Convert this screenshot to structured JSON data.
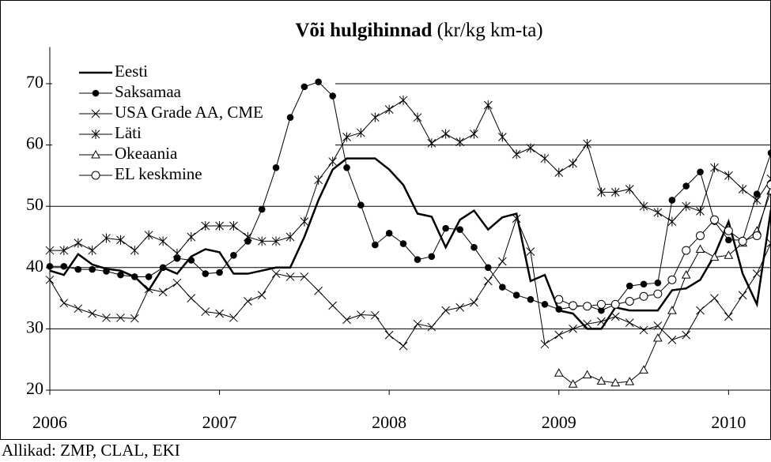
{
  "chart_data": {
    "type": "line",
    "title": "Või hulgihinnad",
    "title_unit": "(kr/kg km-ta)",
    "source": "Allikad: ZMP, CLAL, EKI",
    "x": [
      2006,
      2006.083,
      2006.167,
      2006.25,
      2006.333,
      2006.417,
      2006.5,
      2006.583,
      2006.667,
      2006.75,
      2006.833,
      2006.917,
      2007,
      2007.083,
      2007.167,
      2007.25,
      2007.333,
      2007.417,
      2007.5,
      2007.583,
      2007.667,
      2007.75,
      2007.833,
      2007.917,
      2008,
      2008.083,
      2008.167,
      2008.25,
      2008.333,
      2008.417,
      2008.5,
      2008.583,
      2008.667,
      2008.75,
      2008.833,
      2008.917,
      2009,
      2009.083,
      2009.167,
      2009.25,
      2009.333,
      2009.417,
      2009.5,
      2009.583,
      2009.667,
      2009.75,
      2009.833,
      2009.917,
      2010,
      2010.083,
      2010.167,
      2010.25
    ],
    "xlim": [
      2006,
      2010.25
    ],
    "xticks": [
      2006,
      2007,
      2008,
      2009,
      2010
    ],
    "ylim": [
      20,
      76
    ],
    "yticks": [
      20,
      30,
      40,
      50,
      60,
      70
    ],
    "grid": true,
    "legend": "upper left",
    "series": [
      {
        "name": "Eesti",
        "color": "#000000",
        "marker": "none",
        "width": 2.5,
        "values": [
          39.5,
          38.8,
          42.2,
          40.5,
          39.8,
          39.5,
          38.5,
          36.3,
          40,
          39,
          41.8,
          43,
          42.5,
          39,
          39,
          39.5,
          40,
          40,
          45,
          51,
          56,
          57.8,
          57.8,
          57.8,
          56,
          53.5,
          48.8,
          48.3,
          43.3,
          47.8,
          49.3,
          46.2,
          48.2,
          48.8,
          37.8,
          38.8,
          33,
          32.5,
          30,
          30,
          33.5,
          33,
          33,
          33,
          36.3,
          36.6,
          38,
          42,
          47.5,
          39,
          34,
          49.5
        ]
      },
      {
        "name": "Saksamaa",
        "color": "#000000",
        "marker": "circle",
        "width": 1,
        "values": [
          40.2,
          40.2,
          39.7,
          39.7,
          39.4,
          38.8,
          38.5,
          38.5,
          40,
          41.5,
          41.2,
          39,
          39.2,
          42,
          44.3,
          49.5,
          56.3,
          64.5,
          69.5,
          70.3,
          68,
          56.3,
          50.2,
          43.7,
          45.6,
          43.9,
          41.3,
          41.8,
          46.4,
          46.2,
          43.3,
          40,
          36.8,
          35.5,
          34.8,
          34,
          33.2,
          33.6,
          33.8,
          33,
          34,
          37,
          37.3,
          37.5,
          51,
          53.3,
          55.6,
          47.5,
          44.5,
          44.5,
          52,
          58.7
        ]
      },
      {
        "name": "USA Grade AA, CME",
        "color": "#000000",
        "marker": "x",
        "width": 1,
        "values": [
          38,
          34.2,
          33.3,
          32.5,
          31.8,
          31.8,
          31.7,
          36.5,
          36,
          37.5,
          35,
          32.8,
          32.5,
          31.8,
          34.5,
          35.5,
          39,
          38.5,
          38.5,
          36.2,
          33.8,
          31.5,
          32.3,
          32.2,
          29,
          27.2,
          30.8,
          30.3,
          33,
          33.5,
          34.3,
          37.8,
          41,
          48,
          42.6,
          27.5,
          29,
          30,
          30.8,
          31.2,
          32,
          31,
          29.8,
          30.5,
          28.2,
          29,
          33,
          35,
          32,
          35.5,
          39,
          44
        ]
      },
      {
        "name": "Läti",
        "color": "#000000",
        "marker": "star",
        "width": 1,
        "values": [
          42.8,
          42.8,
          44,
          42.8,
          44.8,
          44.5,
          42.8,
          45.3,
          44.3,
          42.3,
          45,
          46.8,
          46.8,
          46.8,
          45,
          44.3,
          44.3,
          45,
          47.5,
          54.3,
          57.3,
          61.3,
          62,
          64.5,
          65.8,
          67.3,
          64.5,
          60.3,
          61.8,
          60.5,
          61.8,
          66.5,
          61.3,
          58.5,
          59.5,
          57.8,
          55.5,
          57,
          60.2,
          52.3,
          52.3,
          52.8,
          50,
          49,
          47.5,
          50,
          49.2,
          56.3,
          55,
          52.8,
          51,
          54.5
        ]
      },
      {
        "name": "Okeaania",
        "color": "#000000",
        "marker": "triangle",
        "width": 1,
        "values": [
          null,
          null,
          null,
          null,
          null,
          null,
          null,
          null,
          null,
          null,
          null,
          null,
          null,
          null,
          null,
          null,
          null,
          null,
          null,
          null,
          null,
          null,
          null,
          null,
          null,
          null,
          null,
          null,
          null,
          null,
          null,
          null,
          null,
          null,
          null,
          null,
          22.8,
          21,
          22.5,
          21.5,
          21.2,
          21.4,
          23.3,
          28.5,
          33,
          38.8,
          43,
          41.7,
          42,
          44,
          46,
          52.5
        ]
      },
      {
        "name": "EL keskmine",
        "color": "#000000",
        "marker": "circle-open",
        "width": 1,
        "values": [
          null,
          null,
          null,
          null,
          null,
          null,
          null,
          null,
          null,
          null,
          null,
          null,
          null,
          null,
          null,
          null,
          null,
          null,
          null,
          null,
          null,
          null,
          null,
          null,
          null,
          null,
          null,
          null,
          null,
          null,
          null,
          null,
          null,
          null,
          null,
          null,
          34.8,
          33.8,
          33.7,
          34,
          34,
          34.5,
          35.3,
          35.7,
          38,
          42.8,
          45.2,
          47.8,
          46,
          44.3,
          45.2,
          53.5
        ]
      }
    ]
  }
}
